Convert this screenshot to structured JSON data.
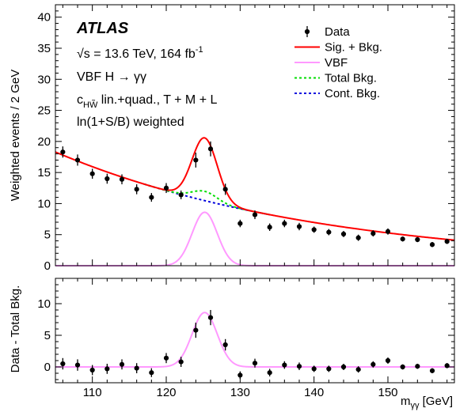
{
  "chart_data": [
    {
      "type": "scatter",
      "panel": "main",
      "annotations": {
        "experiment": "ATLAS",
        "energy_prefix": "√s = 13.6 TeV, 164 fb",
        "energy_sup": "-1",
        "process": "VBF H → γγ",
        "coupling_c": "c",
        "coupling_sub": "HW̃",
        "coupling_rest": " lin.+quad., T + M + L",
        "weighting": "ln(1+S/B) weighted"
      },
      "ylabel": "Weighted events / 2 GeV",
      "xlim": [
        105,
        159
      ],
      "ylim": [
        0,
        42
      ],
      "yticks": [
        0,
        5,
        10,
        15,
        20,
        25,
        30,
        35,
        40
      ],
      "legend": {
        "placement": "top-right",
        "entries": [
          {
            "label": "Data",
            "style": "marker",
            "color": "#000000"
          },
          {
            "label": "Sig. + Bkg.",
            "style": "solid",
            "color": "#ff0000"
          },
          {
            "label": "VBF",
            "style": "solid",
            "color": "#ff99ff"
          },
          {
            "label": "Total Bkg.",
            "style": "dashed",
            "color": "#00dd00"
          },
          {
            "label": "Cont. Bkg.",
            "style": "dashed",
            "color": "#0000dd"
          }
        ]
      },
      "data_points": {
        "x": [
          106,
          108,
          110,
          112,
          114,
          116,
          118,
          120,
          122,
          124,
          126,
          128,
          130,
          132,
          134,
          136,
          138,
          140,
          142,
          144,
          146,
          148,
          150,
          152,
          154,
          156,
          158
        ],
        "y": [
          18.3,
          17.0,
          14.8,
          14.0,
          13.9,
          12.3,
          11.0,
          12.5,
          11.4,
          17.0,
          18.8,
          12.3,
          6.8,
          8.2,
          6.2,
          6.8,
          6.3,
          5.8,
          5.4,
          5.1,
          4.5,
          5.2,
          5.5,
          4.3,
          4.2,
          3.4,
          3.9
        ],
        "yerr": [
          0.9,
          0.9,
          0.8,
          0.8,
          0.8,
          0.8,
          0.7,
          0.8,
          0.7,
          1.2,
          1.2,
          0.9,
          0.6,
          0.7,
          0.6,
          0.6,
          0.6,
          0.5,
          0.5,
          0.5,
          0.5,
          0.5,
          0.5,
          0.4,
          0.4,
          0.4,
          0.4
        ]
      },
      "model": {
        "cont_bkg": {
          "a": 18.3,
          "x0": 105,
          "tau": 36.2
        },
        "resonant_bkg": {
          "amplitude": 1.5,
          "mean": 125.2,
          "sigma": 1.7
        },
        "vbf_signal": {
          "amplitude": 8.6,
          "mean": 125.2,
          "sigma": 1.7
        }
      }
    },
    {
      "type": "scatter",
      "panel": "residual",
      "ylabel": "Data - Total Bkg.",
      "xlabel_main": "m",
      "xlabel_sub": "γγ",
      "xlabel_unit": " [GeV]",
      "xlim": [
        105,
        159
      ],
      "ylim": [
        -2.5,
        14
      ],
      "yticks": [
        0,
        5,
        10
      ],
      "xticks": [
        110,
        120,
        130,
        140,
        150
      ],
      "data_points": {
        "x": [
          106,
          108,
          110,
          112,
          114,
          116,
          118,
          120,
          122,
          124,
          126,
          128,
          130,
          132,
          134,
          136,
          138,
          140,
          142,
          144,
          146,
          148,
          150,
          152,
          154,
          156,
          158
        ],
        "y": [
          0.5,
          0.3,
          -0.5,
          -0.3,
          0.4,
          -0.2,
          -0.9,
          1.4,
          0.8,
          5.8,
          7.8,
          3.5,
          -1.3,
          0.6,
          -0.9,
          0.3,
          0.1,
          -0.3,
          -0.3,
          0.0,
          -0.4,
          0.4,
          1.0,
          0.0,
          0.1,
          -0.6,
          0.2
        ],
        "yerr": [
          0.9,
          0.9,
          0.8,
          0.8,
          0.8,
          0.8,
          0.7,
          0.8,
          0.8,
          1.2,
          1.2,
          0.9,
          0.6,
          0.7,
          0.6,
          0.6,
          0.6,
          0.5,
          0.5,
          0.5,
          0.5,
          0.5,
          0.5,
          0.4,
          0.4,
          0.4,
          0.4
        ]
      },
      "model": {
        "vbf_signal": {
          "amplitude": 8.6,
          "mean": 125.2,
          "sigma": 1.7
        }
      }
    }
  ]
}
